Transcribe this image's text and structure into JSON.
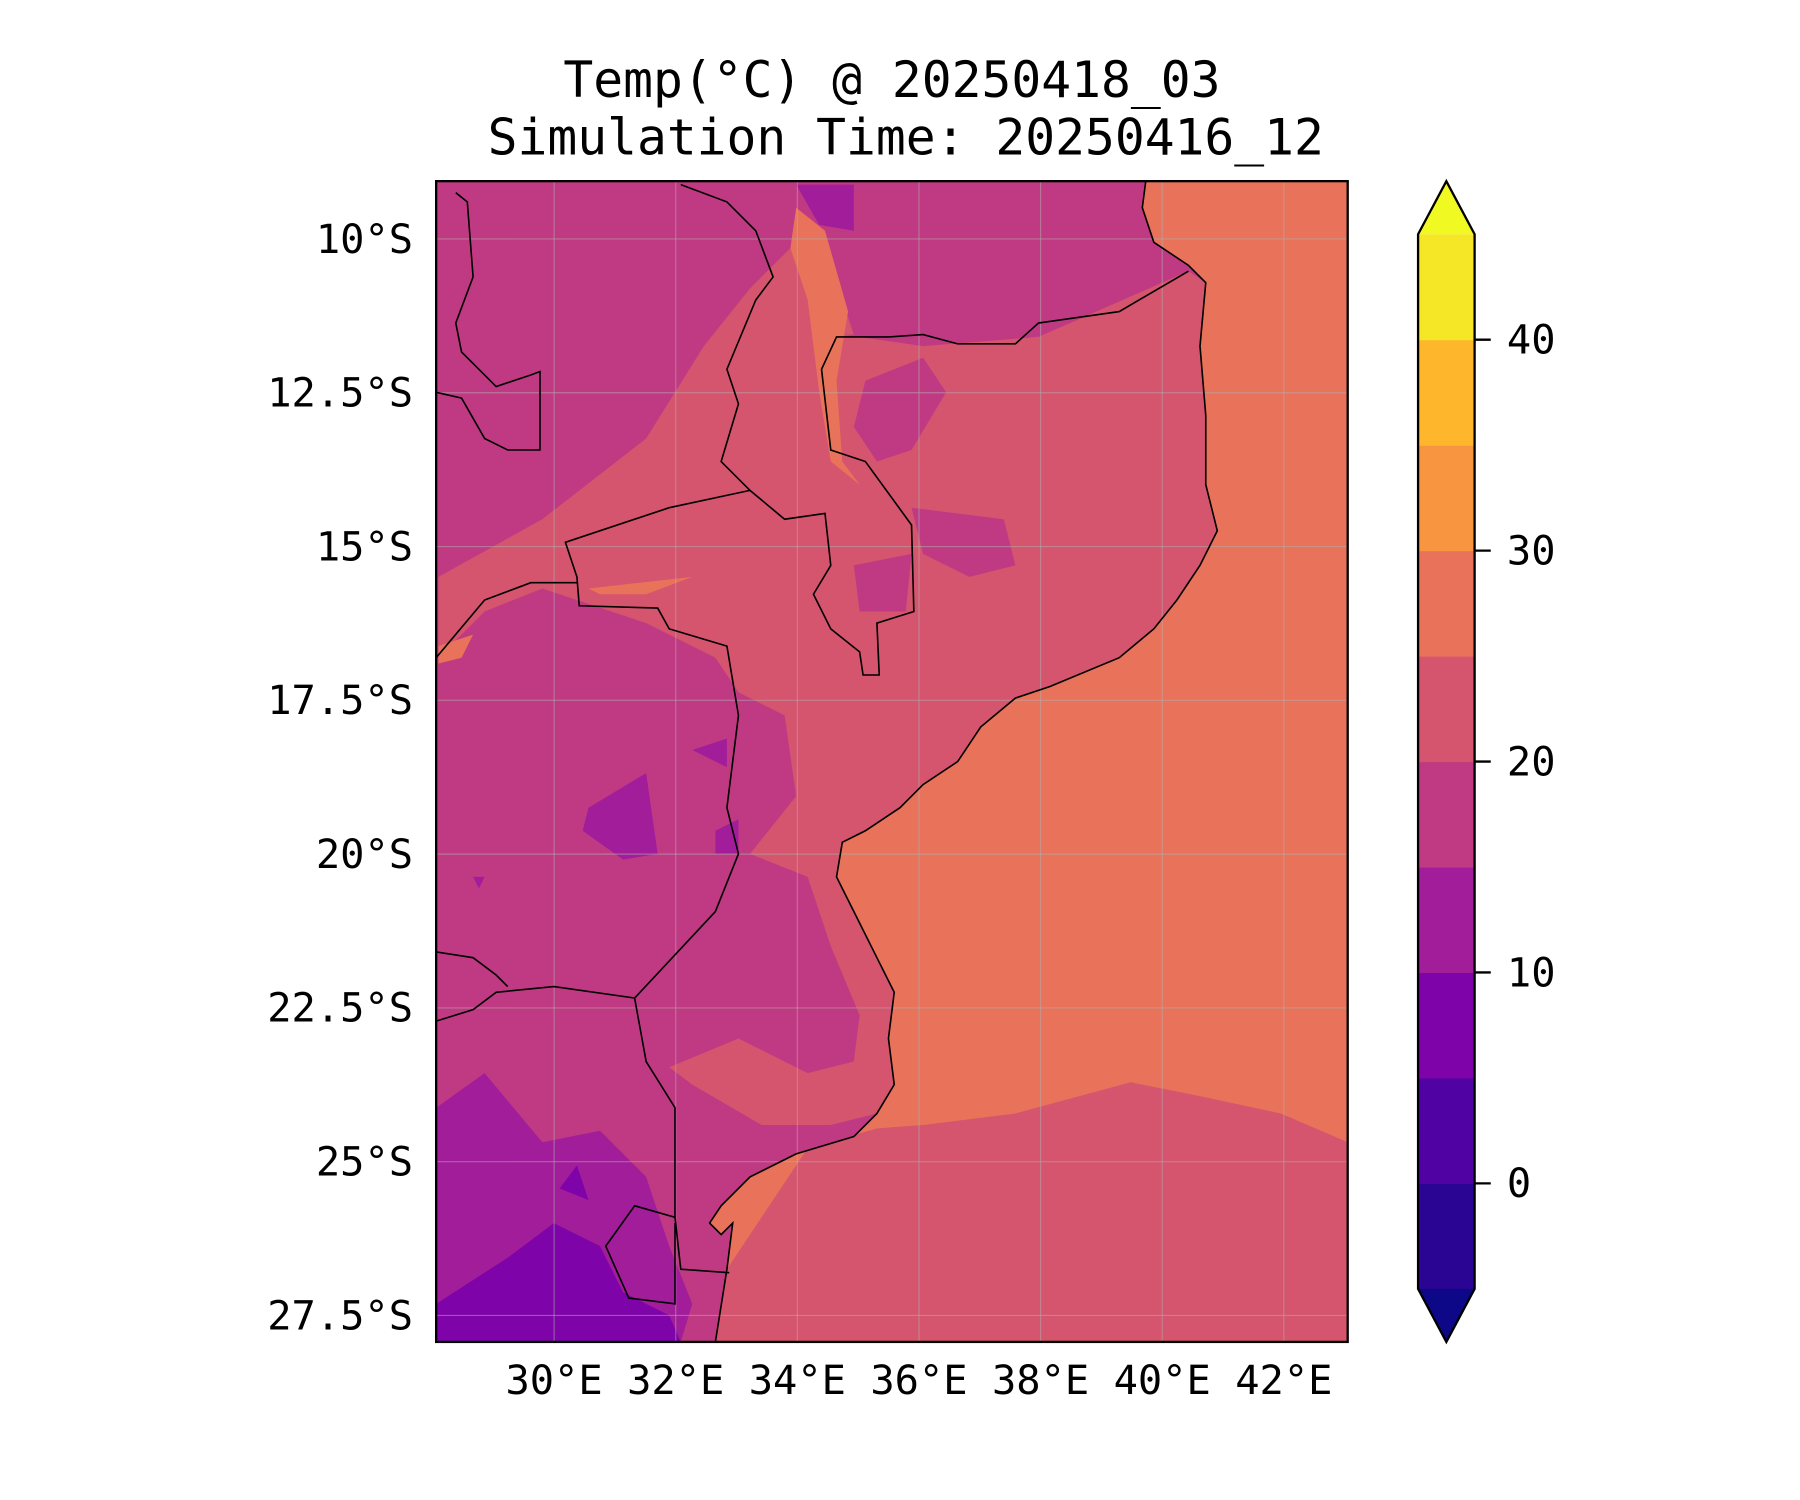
{
  "chart_data": {
    "type": "heatmap",
    "title_line1": "Temp(°C) @ 20250418_03",
    "title_line2": "Simulation Time: 20250416_12",
    "xlabel": "",
    "ylabel": "",
    "lon_range": [
      28.06,
      43.05
    ],
    "lat_range": [
      -27.93,
      -9.06
    ],
    "x_ticks": [
      {
        "value": 30,
        "label": "30°E"
      },
      {
        "value": 32,
        "label": "32°E"
      },
      {
        "value": 34,
        "label": "34°E"
      },
      {
        "value": 36,
        "label": "36°E"
      },
      {
        "value": 38,
        "label": "38°E"
      },
      {
        "value": 40,
        "label": "40°E"
      },
      {
        "value": 42,
        "label": "42°E"
      }
    ],
    "y_ticks": [
      {
        "value": -10,
        "label": "10°S"
      },
      {
        "value": -12.5,
        "label": "12.5°S"
      },
      {
        "value": -15,
        "label": "15°S"
      },
      {
        "value": -17.5,
        "label": "17.5°S"
      },
      {
        "value": -20,
        "label": "20°S"
      },
      {
        "value": -22.5,
        "label": "22.5°S"
      },
      {
        "value": -25,
        "label": "25°S"
      },
      {
        "value": -27.5,
        "label": "27.5°S"
      }
    ],
    "grid": true,
    "colorbar": {
      "levels": [
        -5,
        0,
        5,
        10,
        15,
        20,
        25,
        30,
        35,
        40,
        45
      ],
      "colors": [
        "#2a0593",
        "#5002a2",
        "#7e03a8",
        "#a21d9a",
        "#c03a83",
        "#d5546e",
        "#e8735a",
        "#f89540",
        "#feb72d",
        "#f5e626"
      ],
      "extend_min_color": "#0d0887",
      "extend_max_color": "#f0f921",
      "ticks": [
        {
          "value": 0,
          "label": "0"
        },
        {
          "value": 10,
          "label": "10"
        },
        {
          "value": 20,
          "label": "20"
        },
        {
          "value": 30,
          "label": "30"
        },
        {
          "value": 40,
          "label": "40"
        }
      ],
      "placement": "right"
    },
    "regions": {
      "ocean_north_temp_band": "25-30",
      "ocean_south_temp_band": "20-25",
      "inland_typical_band": "15-20",
      "southwest_coldest_band": "5-10"
    }
  }
}
